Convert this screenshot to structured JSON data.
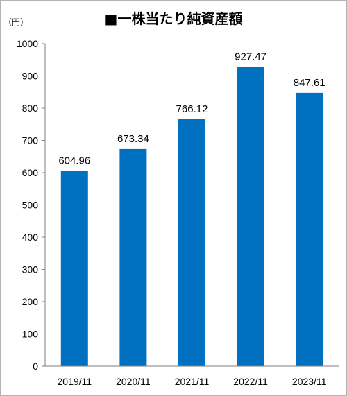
{
  "chart_data": {
    "type": "bar",
    "title": "■一株当たり純資産額",
    "ylabel": "（円）",
    "xlabel": "",
    "categories": [
      "2019/11",
      "2020/11",
      "2021/11",
      "2022/11",
      "2023/11"
    ],
    "values": [
      604.96,
      673.34,
      766.12,
      927.47,
      847.61
    ],
    "data_labels": [
      "604.96",
      "673.34",
      "766.12",
      "927.47",
      "847.61"
    ],
    "ylim": [
      0,
      1000
    ],
    "yticks": [
      0,
      100,
      200,
      300,
      400,
      500,
      600,
      700,
      800,
      900,
      1000
    ],
    "grid": false,
    "legend": "none",
    "bar_color": "#0070c0"
  }
}
